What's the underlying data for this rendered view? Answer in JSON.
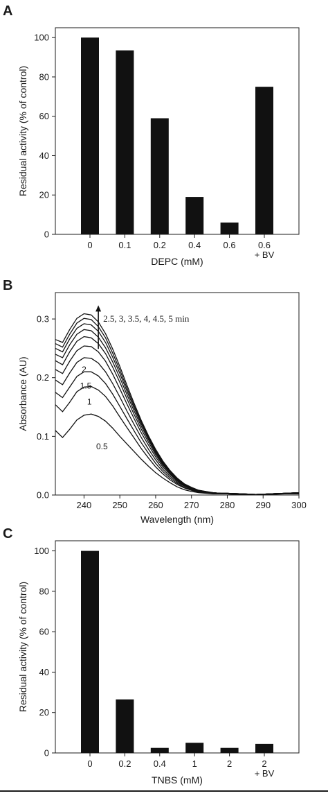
{
  "chart_data": [
    {
      "panel": "A",
      "type": "bar",
      "categories": [
        "0",
        "0.1",
        "0.2",
        "0.4",
        "0.6",
        "0.6\n+ BV"
      ],
      "values": [
        100,
        93.5,
        59,
        19,
        6,
        75
      ],
      "xlabel": "DEPC (mM)",
      "ylabel": "Residual activity (% of control)",
      "ylim": [
        0,
        105
      ],
      "yticks": [
        0,
        20,
        40,
        60,
        80,
        100
      ],
      "grid": false
    },
    {
      "panel": "B",
      "type": "line",
      "xlabel": "Wavelength (nm)",
      "ylabel": "Absorbance (AU)",
      "xlim": [
        232,
        300
      ],
      "ylim": [
        0,
        0.345
      ],
      "xticks": [
        240,
        250,
        260,
        270,
        280,
        290,
        300
      ],
      "yticks": [
        0.0,
        0.1,
        0.2,
        0.3
      ],
      "ytick_labels": [
        "0.0",
        "0.1",
        "0.2",
        "0.3"
      ],
      "grid": false,
      "annotation": "2.5, 3, 3.5, 4, 4.5, 5 min",
      "series": [
        {
          "name": "0.5",
          "x": [
            232,
            234,
            236,
            238,
            240,
            242,
            244,
            246,
            248,
            250,
            252,
            254,
            256,
            258,
            260,
            262,
            264,
            266,
            268,
            270,
            272,
            274,
            276,
            278,
            280,
            284,
            288,
            292,
            296,
            300
          ],
          "y": [
            0.11,
            0.098,
            0.112,
            0.128,
            0.136,
            0.138,
            0.134,
            0.126,
            0.114,
            0.1,
            0.087,
            0.074,
            0.061,
            0.049,
            0.038,
            0.029,
            0.021,
            0.014,
            0.009,
            0.006,
            0.004,
            0.003,
            0.002,
            0.002,
            0.002,
            0.001,
            0.001,
            0.001,
            0.002,
            0.002
          ]
        },
        {
          "name": "1",
          "x": [
            232,
            234,
            236,
            238,
            240,
            242,
            244,
            246,
            248,
            250,
            252,
            254,
            256,
            258,
            260,
            262,
            264,
            266,
            268,
            270,
            272,
            274,
            276,
            278,
            280,
            284,
            288,
            292,
            296,
            300
          ],
          "y": [
            0.154,
            0.142,
            0.158,
            0.176,
            0.184,
            0.185,
            0.179,
            0.168,
            0.152,
            0.133,
            0.115,
            0.097,
            0.079,
            0.063,
            0.048,
            0.036,
            0.026,
            0.018,
            0.012,
            0.008,
            0.005,
            0.004,
            0.003,
            0.003,
            0.002,
            0.001,
            0.001,
            0.002,
            0.003,
            0.003
          ]
        },
        {
          "name": "1.5",
          "x": [
            232,
            234,
            236,
            238,
            240,
            242,
            244,
            246,
            248,
            250,
            252,
            254,
            256,
            258,
            260,
            262,
            264,
            266,
            268,
            270,
            272,
            274,
            276,
            278,
            280,
            284,
            288,
            292,
            296,
            300
          ],
          "y": [
            0.175,
            0.166,
            0.184,
            0.202,
            0.21,
            0.21,
            0.203,
            0.19,
            0.172,
            0.151,
            0.13,
            0.109,
            0.089,
            0.071,
            0.054,
            0.04,
            0.029,
            0.02,
            0.013,
            0.009,
            0.006,
            0.004,
            0.003,
            0.003,
            0.002,
            0.001,
            0.001,
            0.002,
            0.003,
            0.003
          ]
        },
        {
          "name": "2",
          "x": [
            232,
            234,
            236,
            238,
            240,
            242,
            244,
            246,
            248,
            250,
            252,
            254,
            256,
            258,
            260,
            262,
            264,
            266,
            268,
            270,
            272,
            274,
            276,
            278,
            280,
            284,
            288,
            292,
            296,
            300
          ],
          "y": [
            0.196,
            0.188,
            0.208,
            0.226,
            0.234,
            0.233,
            0.225,
            0.21,
            0.19,
            0.167,
            0.143,
            0.12,
            0.098,
            0.078,
            0.06,
            0.044,
            0.032,
            0.022,
            0.015,
            0.01,
            0.006,
            0.004,
            0.003,
            0.003,
            0.002,
            0.001,
            0.001,
            0.002,
            0.003,
            0.004
          ]
        },
        {
          "name": "2.5",
          "x": [
            232,
            234,
            236,
            238,
            240,
            242,
            244,
            246,
            248,
            250,
            252,
            254,
            256,
            258,
            260,
            262,
            264,
            266,
            268,
            270,
            272,
            274,
            276,
            278,
            280,
            284,
            288,
            292,
            296,
            300
          ],
          "y": [
            0.214,
            0.207,
            0.228,
            0.246,
            0.254,
            0.253,
            0.244,
            0.228,
            0.206,
            0.181,
            0.155,
            0.13,
            0.106,
            0.085,
            0.065,
            0.048,
            0.035,
            0.024,
            0.016,
            0.011,
            0.007,
            0.005,
            0.004,
            0.003,
            0.003,
            0.002,
            0.001,
            0.002,
            0.003,
            0.004
          ]
        },
        {
          "name": "3",
          "x": [
            232,
            234,
            236,
            238,
            240,
            242,
            244,
            246,
            248,
            250,
            252,
            254,
            256,
            258,
            260,
            262,
            264,
            266,
            268,
            270,
            272,
            274,
            276,
            278,
            280,
            284,
            288,
            292,
            296,
            300
          ],
          "y": [
            0.229,
            0.222,
            0.244,
            0.262,
            0.27,
            0.268,
            0.258,
            0.241,
            0.218,
            0.192,
            0.164,
            0.137,
            0.112,
            0.09,
            0.069,
            0.051,
            0.037,
            0.025,
            0.017,
            0.011,
            0.007,
            0.005,
            0.004,
            0.003,
            0.003,
            0.002,
            0.001,
            0.002,
            0.003,
            0.004
          ]
        },
        {
          "name": "3.5",
          "x": [
            232,
            234,
            236,
            238,
            240,
            242,
            244,
            246,
            248,
            250,
            252,
            254,
            256,
            258,
            260,
            262,
            264,
            266,
            268,
            270,
            272,
            274,
            276,
            278,
            280,
            284,
            288,
            292,
            296,
            300
          ],
          "y": [
            0.24,
            0.234,
            0.256,
            0.274,
            0.282,
            0.28,
            0.269,
            0.251,
            0.227,
            0.2,
            0.171,
            0.143,
            0.117,
            0.094,
            0.072,
            0.053,
            0.038,
            0.026,
            0.018,
            0.012,
            0.008,
            0.005,
            0.004,
            0.003,
            0.003,
            0.002,
            0.001,
            0.002,
            0.003,
            0.004
          ]
        },
        {
          "name": "4",
          "x": [
            232,
            234,
            236,
            238,
            240,
            242,
            244,
            246,
            248,
            250,
            252,
            254,
            256,
            258,
            260,
            262,
            264,
            266,
            268,
            270,
            272,
            274,
            276,
            278,
            280,
            284,
            288,
            292,
            296,
            300
          ],
          "y": [
            0.25,
            0.244,
            0.266,
            0.284,
            0.292,
            0.29,
            0.279,
            0.26,
            0.235,
            0.207,
            0.177,
            0.148,
            0.121,
            0.097,
            0.074,
            0.055,
            0.04,
            0.027,
            0.018,
            0.012,
            0.008,
            0.005,
            0.004,
            0.003,
            0.003,
            0.002,
            0.001,
            0.002,
            0.003,
            0.004
          ]
        },
        {
          "name": "4.5",
          "x": [
            232,
            234,
            236,
            238,
            240,
            242,
            244,
            246,
            248,
            250,
            252,
            254,
            256,
            258,
            260,
            262,
            264,
            266,
            268,
            270,
            272,
            274,
            276,
            278,
            280,
            284,
            288,
            292,
            296,
            300
          ],
          "y": [
            0.258,
            0.252,
            0.274,
            0.293,
            0.301,
            0.299,
            0.287,
            0.268,
            0.242,
            0.213,
            0.182,
            0.152,
            0.124,
            0.099,
            0.076,
            0.056,
            0.041,
            0.028,
            0.019,
            0.013,
            0.008,
            0.006,
            0.004,
            0.003,
            0.003,
            0.002,
            0.001,
            0.002,
            0.003,
            0.004
          ]
        },
        {
          "name": "5",
          "x": [
            232,
            234,
            236,
            238,
            240,
            242,
            244,
            246,
            248,
            250,
            252,
            254,
            256,
            258,
            260,
            262,
            264,
            266,
            268,
            270,
            272,
            274,
            276,
            278,
            280,
            284,
            288,
            292,
            296,
            300
          ],
          "y": [
            0.265,
            0.26,
            0.282,
            0.301,
            0.309,
            0.307,
            0.295,
            0.275,
            0.249,
            0.219,
            0.187,
            0.156,
            0.127,
            0.101,
            0.078,
            0.058,
            0.042,
            0.029,
            0.019,
            0.013,
            0.008,
            0.006,
            0.004,
            0.003,
            0.003,
            0.002,
            0.001,
            0.002,
            0.003,
            0.004
          ]
        }
      ],
      "curve_labels": [
        {
          "text": "0.5",
          "x": 245,
          "y": 0.083
        },
        {
          "text": "1",
          "x": 241.5,
          "y": 0.159
        },
        {
          "text": "1.5",
          "x": 240.5,
          "y": 0.186
        },
        {
          "text": "2",
          "x": 240,
          "y": 0.214
        }
      ]
    },
    {
      "panel": "C",
      "type": "bar",
      "categories": [
        "0",
        "0.2",
        "0.4",
        "1",
        "2",
        "2\n+ BV"
      ],
      "values": [
        100,
        26.5,
        2.5,
        5,
        2.5,
        4.5
      ],
      "xlabel": "TNBS (mM)",
      "ylabel": "Residual activity (% of control)",
      "ylim": [
        0,
        105
      ],
      "yticks": [
        0,
        20,
        40,
        60,
        80,
        100
      ],
      "grid": false
    }
  ],
  "panels": {
    "a": {
      "letter": "A"
    },
    "b": {
      "letter": "B"
    },
    "c": {
      "letter": "C"
    }
  },
  "colors": {
    "ink": "#111111",
    "frame": "#1a1a1a",
    "background": "#ffffff"
  }
}
